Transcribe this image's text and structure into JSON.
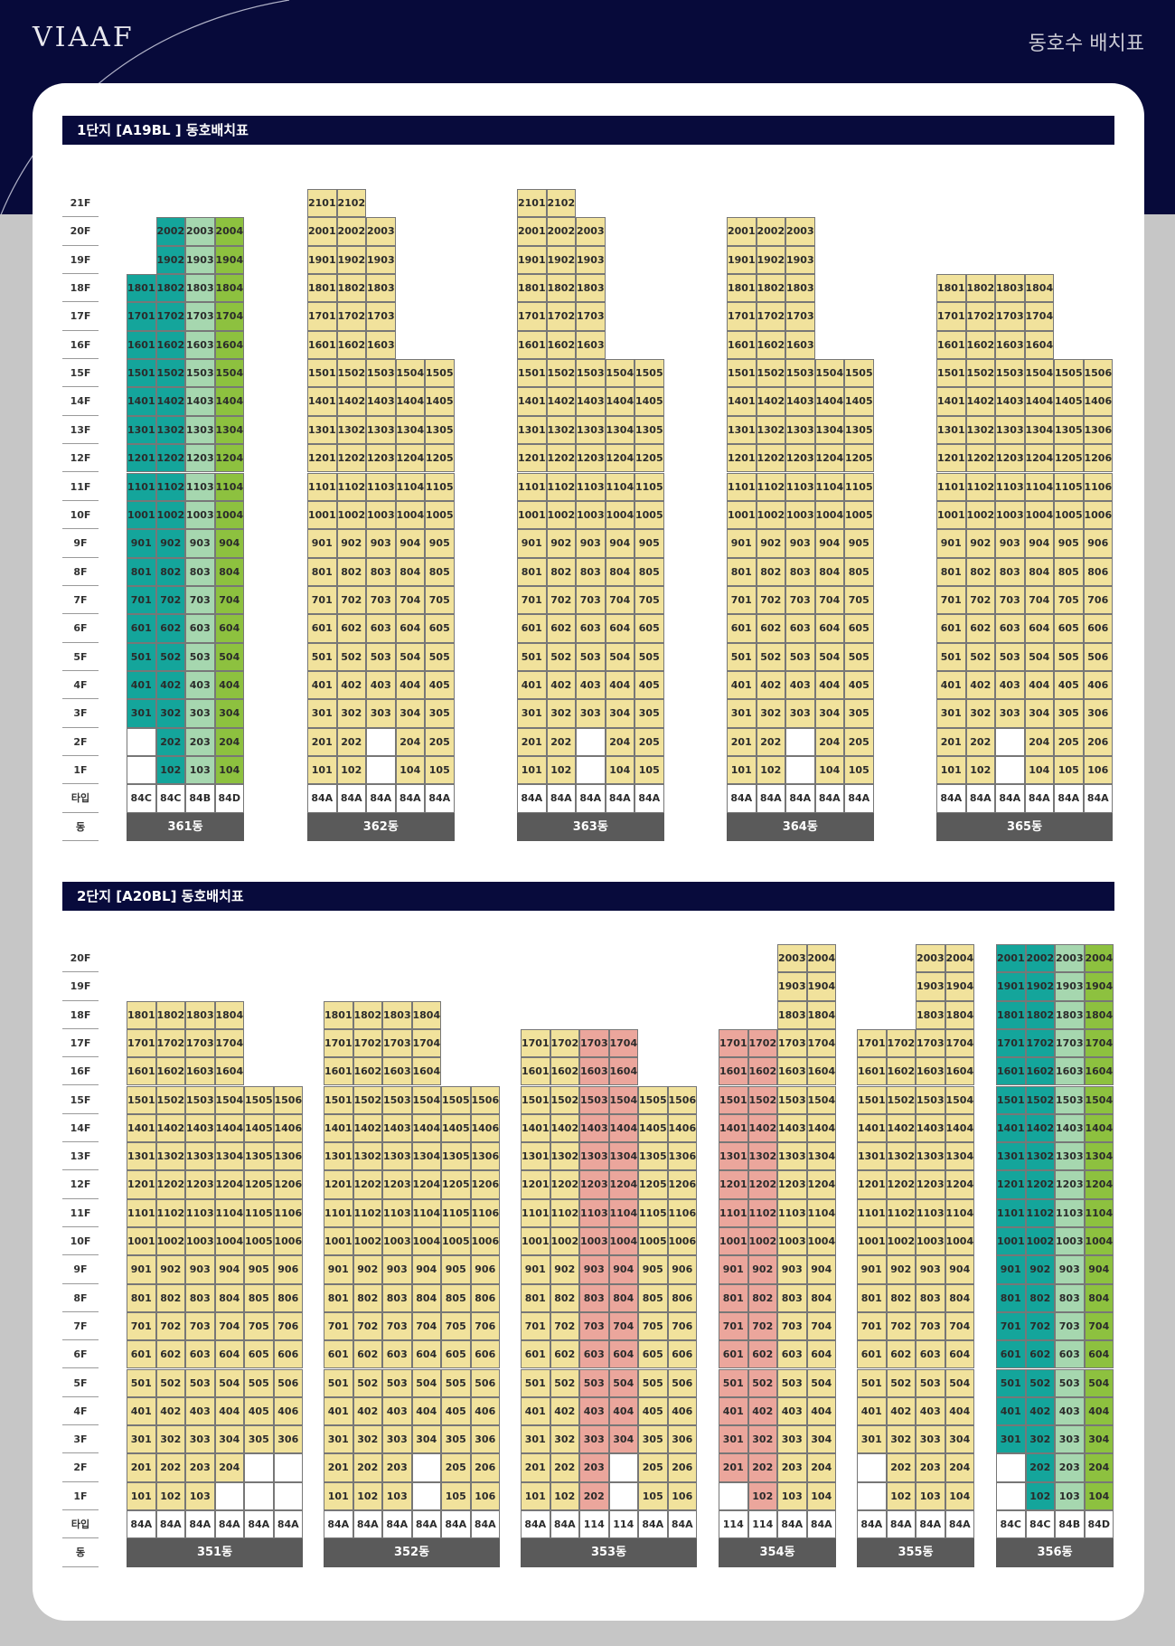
{
  "header": {
    "logo": "VIAAF",
    "title": "동호수 배치표"
  },
  "colors": {
    "navy": "#080b3c",
    "yellow": "#f1e29c",
    "teal": "#14a59b",
    "lightgreen": "#a6d7af",
    "green": "#8dc13f",
    "salmon": "#eba69c",
    "type_cell": "#ffffff",
    "empty": "#ffffff"
  },
  "sections": [
    {
      "title": "1단지  [A19BL ] 동호배치표",
      "floor_labels": [
        "21F",
        "20F",
        "19F",
        "18F",
        "17F",
        "16F",
        "15F",
        "14F",
        "13F",
        "12F",
        "11F",
        "10F",
        "9F",
        "8F",
        "7F",
        "6F",
        "5F",
        "4F",
        "3F",
        "2F",
        "1F",
        "타입",
        "동"
      ],
      "buildings": [
        {
          "name": "361동",
          "types": [
            "84C",
            "84C",
            "84B",
            "84D"
          ],
          "colors": [
            "teal",
            "teal",
            "lightgreen",
            "green"
          ],
          "tops": [
            18,
            20,
            20,
            20
          ],
          "missing": [
            "201",
            "101"
          ]
        },
        {
          "name": "362동",
          "types": [
            "84A",
            "84A",
            "84A",
            "84A",
            "84A"
          ],
          "colors": [
            "yellow",
            "yellow",
            "yellow",
            "yellow",
            "yellow"
          ],
          "tops": [
            21,
            21,
            20,
            15,
            15
          ],
          "missing": [
            "203",
            "103"
          ]
        },
        {
          "name": "363동",
          "types": [
            "84A",
            "84A",
            "84A",
            "84A",
            "84A"
          ],
          "colors": [
            "yellow",
            "yellow",
            "yellow",
            "yellow",
            "yellow"
          ],
          "tops": [
            21,
            21,
            20,
            15,
            15
          ],
          "missing": [
            "203",
            "103"
          ]
        },
        {
          "name": "364동",
          "types": [
            "84A",
            "84A",
            "84A",
            "84A",
            "84A"
          ],
          "colors": [
            "yellow",
            "yellow",
            "yellow",
            "yellow",
            "yellow"
          ],
          "tops": [
            20,
            20,
            20,
            15,
            15
          ],
          "missing": [
            "203",
            "103"
          ]
        },
        {
          "name": "365동",
          "types": [
            "84A",
            "84A",
            "84A",
            "84A",
            "84A",
            "84A"
          ],
          "colors": [
            "yellow",
            "yellow",
            "yellow",
            "yellow",
            "yellow",
            "yellow"
          ],
          "tops": [
            18,
            18,
            18,
            18,
            15,
            15
          ],
          "missing": [
            "203",
            "103"
          ]
        }
      ]
    },
    {
      "title": "2단지 [A20BL] 동호배치표",
      "floor_labels": [
        "20F",
        "19F",
        "18F",
        "17F",
        "16F",
        "15F",
        "14F",
        "13F",
        "12F",
        "11F",
        "10F",
        "9F",
        "8F",
        "7F",
        "6F",
        "5F",
        "4F",
        "3F",
        "2F",
        "1F",
        "타입",
        "동"
      ],
      "buildings": [
        {
          "name": "351동",
          "types": [
            "84A",
            "84A",
            "84A",
            "84A",
            "84A",
            "84A"
          ],
          "colors": [
            "yellow",
            "yellow",
            "yellow",
            "yellow",
            "yellow",
            "yellow"
          ],
          "tops": [
            18,
            18,
            18,
            18,
            15,
            15
          ],
          "missing": [
            "205",
            "206",
            "104",
            "105",
            "106"
          ]
        },
        {
          "name": "352동",
          "types": [
            "84A",
            "84A",
            "84A",
            "84A",
            "84A",
            "84A"
          ],
          "colors": [
            "yellow",
            "yellow",
            "yellow",
            "yellow",
            "yellow",
            "yellow"
          ],
          "tops": [
            18,
            18,
            18,
            18,
            15,
            15
          ],
          "missing": [
            "204",
            "104"
          ]
        },
        {
          "name": "353동",
          "types": [
            "84A",
            "84A",
            "114",
            "114",
            "84A",
            "84A"
          ],
          "colors": [
            "yellow",
            "yellow",
            "salmon",
            "salmon",
            "yellow",
            "yellow"
          ],
          "tops": [
            17,
            17,
            17,
            17,
            15,
            15
          ],
          "missing": [
            "204",
            "104"
          ],
          "labels": {
            "102": "102",
            "103": "202"
          }
        },
        {
          "name": "354동",
          "types": [
            "114",
            "114",
            "84A",
            "84A"
          ],
          "colors": [
            "salmon",
            "salmon",
            "yellow",
            "yellow"
          ],
          "tops": [
            17,
            17,
            20,
            20
          ],
          "missing": [
            "101"
          ]
        },
        {
          "name": "355동",
          "types": [
            "84A",
            "84A",
            "84A",
            "84A"
          ],
          "colors": [
            "yellow",
            "yellow",
            "yellow",
            "yellow"
          ],
          "tops": [
            17,
            17,
            20,
            20
          ],
          "missing": [
            "201",
            "101"
          ]
        },
        {
          "name": "356동",
          "types": [
            "84C",
            "84C",
            "84B",
            "84D"
          ],
          "colors": [
            "teal",
            "teal",
            "lightgreen",
            "green"
          ],
          "tops": [
            20,
            20,
            20,
            20
          ],
          "missing": [
            "201",
            "101"
          ]
        }
      ]
    }
  ]
}
